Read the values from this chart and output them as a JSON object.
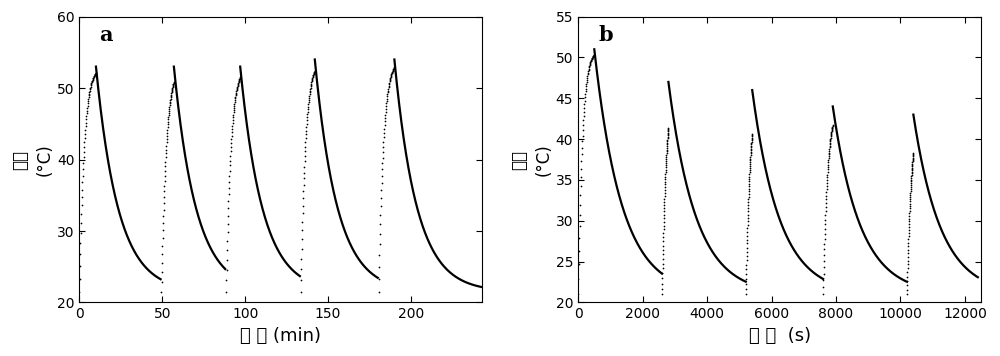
{
  "panel_a": {
    "label": "a",
    "xlabel": "时 间 (min)",
    "ylabel_top": "(°C)",
    "ylabel_bottom": "温度",
    "xlim": [
      0,
      243
    ],
    "ylim": [
      20,
      60
    ],
    "xticks": [
      0,
      50,
      100,
      150,
      200
    ],
    "yticks": [
      20,
      30,
      40,
      50,
      60
    ],
    "cycles": 5,
    "T_base": 21.5,
    "T_peaks": [
      53.0,
      53.0,
      53.0,
      54.0,
      54.0
    ],
    "peak_times": [
      10,
      57,
      97,
      142,
      190
    ],
    "cool_end_times": [
      49,
      88,
      133,
      180,
      243
    ],
    "rise_tau": 2.8,
    "fall_tau": 13.5
  },
  "panel_b": {
    "label": "b",
    "xlabel": "时 间  (s)",
    "ylabel_top": "(°C)",
    "ylabel_bottom": "温度",
    "xlim": [
      0,
      12500
    ],
    "ylim": [
      20,
      55
    ],
    "xticks": [
      0,
      2000,
      4000,
      6000,
      8000,
      10000,
      12000
    ],
    "yticks": [
      20,
      25,
      30,
      35,
      40,
      45,
      50,
      55
    ],
    "cycles": 5,
    "T_base": 21.0,
    "T_peaks": [
      51.0,
      47.0,
      46.0,
      44.0,
      43.0
    ],
    "peak_times": [
      500,
      2800,
      5400,
      7900,
      10400
    ],
    "cool_end_times": [
      2600,
      5200,
      7600,
      10200,
      12400
    ],
    "rise_tau": 130.0,
    "fall_tau": 850.0
  },
  "dot_color": "#000000",
  "line_color": "#000000",
  "bg_color": "#ffffff",
  "xlabel_fontsize": 13,
  "ylabel_fontsize": 12,
  "tick_fontsize": 10,
  "label_fontsize": 15
}
